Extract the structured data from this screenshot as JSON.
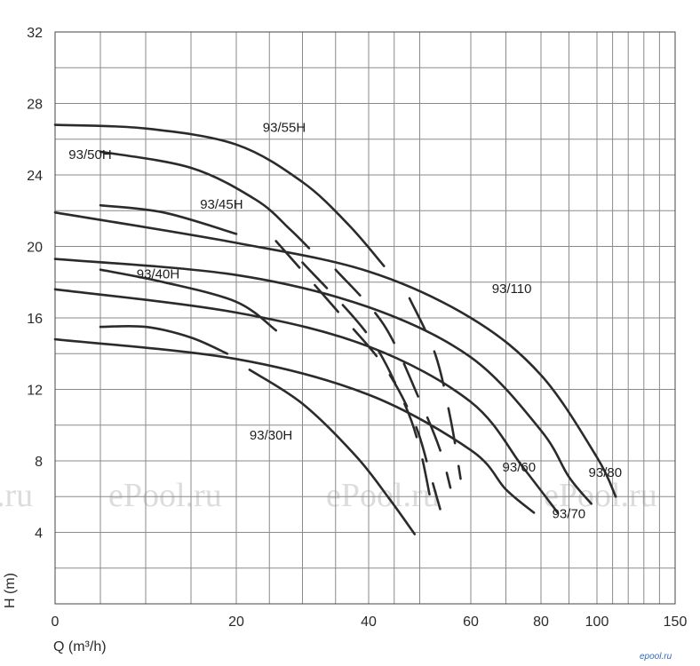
{
  "chart_data": {
    "type": "line",
    "xlabel": "Q (m³/h)",
    "ylabel": "H (m)",
    "x_scale": "log",
    "xlim": [
      0,
      150
    ],
    "ylim": [
      0,
      32
    ],
    "x_ticks": [
      {
        "value": 0,
        "label": "0"
      },
      {
        "value": 20,
        "label": "20"
      },
      {
        "value": 40,
        "label": "40"
      },
      {
        "value": 60,
        "label": "60"
      },
      {
        "value": 80,
        "label": "80"
      },
      {
        "value": 100,
        "label": "100"
      },
      {
        "value": 150,
        "label": "150"
      }
    ],
    "y_ticks": [
      {
        "value": 4,
        "label": "4"
      },
      {
        "value": 8,
        "label": "8"
      },
      {
        "value": 12,
        "label": "12"
      },
      {
        "value": 16,
        "label": "16"
      },
      {
        "value": 20,
        "label": "20"
      },
      {
        "value": 24,
        "label": "24"
      },
      {
        "value": 28,
        "label": "28"
      },
      {
        "value": 32,
        "label": "32"
      }
    ],
    "grid": true,
    "series": [
      {
        "name": "93/55H",
        "points": [
          [
            0,
            26.8
          ],
          [
            10,
            26.6
          ],
          [
            20,
            25.7
          ],
          [
            30,
            23.6
          ],
          [
            37,
            21.2
          ],
          [
            43,
            18.9
          ]
        ]
      },
      {
        "name": "93/50H",
        "points": [
          [
            5,
            25.3
          ],
          [
            15,
            24.4
          ],
          [
            23,
            22.6
          ],
          [
            28,
            21.0
          ],
          [
            31,
            19.9
          ]
        ]
      },
      {
        "name": "93/45H",
        "points": [
          [
            5,
            22.3
          ],
          [
            12,
            21.9
          ],
          [
            20,
            20.7
          ]
        ]
      },
      {
        "name": "93/40H",
        "points": [
          [
            5,
            18.7
          ],
          [
            12,
            18.0
          ],
          [
            20,
            16.9
          ],
          [
            26,
            15.3
          ]
        ]
      },
      {
        "name": "93/30H",
        "points": [
          [
            5,
            15.5
          ],
          [
            10,
            15.5
          ],
          [
            15,
            14.9
          ],
          [
            19,
            14.0
          ]
        ]
      },
      {
        "name": "93/110",
        "points": [
          [
            0,
            21.9
          ],
          [
            20,
            20.2
          ],
          [
            40,
            18.6
          ],
          [
            60,
            16.0
          ],
          [
            80,
            12.8
          ],
          [
            100,
            8.2
          ],
          [
            112,
            6.0
          ]
        ]
      },
      {
        "name": "93/80",
        "points": [
          [
            0,
            19.3
          ],
          [
            20,
            18.4
          ],
          [
            40,
            16.6
          ],
          [
            60,
            13.8
          ],
          [
            80,
            9.7
          ],
          [
            90,
            7.1
          ],
          [
            98,
            5.6
          ]
        ]
      },
      {
        "name": "93/70",
        "points": [
          [
            0,
            17.6
          ],
          [
            20,
            16.3
          ],
          [
            40,
            14.4
          ],
          [
            60,
            11.3
          ],
          [
            75,
            7.6
          ],
          [
            86,
            5.1
          ]
        ]
      },
      {
        "name": "93/60",
        "points": [
          [
            0,
            14.8
          ],
          [
            20,
            13.7
          ],
          [
            40,
            11.7
          ],
          [
            60,
            8.6
          ],
          [
            70,
            6.4
          ],
          [
            78,
            5.1
          ]
        ]
      },
      {
        "name": "",
        "points": [
          [
            22,
            13.1
          ],
          [
            30,
            11.2
          ],
          [
            38,
            8.3
          ],
          [
            44,
            5.9
          ],
          [
            49,
            3.9
          ]
        ]
      }
    ],
    "dashed_series": [
      {
        "points": [
          [
            26,
            20.3
          ],
          [
            35,
            16.5
          ],
          [
            43,
            13.3
          ],
          [
            49,
            10.1
          ],
          [
            52,
            7.3
          ],
          [
            54,
            5.3
          ]
        ]
      },
      {
        "points": [
          [
            30,
            19.1
          ],
          [
            40,
            15.0
          ],
          [
            47,
            11.2
          ],
          [
            50,
            8.7
          ],
          [
            52,
            6.0
          ]
        ]
      },
      {
        "points": [
          [
            35,
            18.7
          ],
          [
            43,
            15.6
          ],
          [
            50,
            11.4
          ],
          [
            54,
            8.6
          ],
          [
            56,
            6.5
          ]
        ]
      },
      {
        "points": [
          [
            48,
            17.1
          ],
          [
            53,
            14.0
          ],
          [
            56,
            10.4
          ],
          [
            58,
            7.0
          ]
        ]
      }
    ],
    "annotations": [
      {
        "text": "93/55H",
        "x": 24,
        "y": 26.4
      },
      {
        "text": "93/50H",
        "x": 1.5,
        "y": 24.9
      },
      {
        "text": "93/45H",
        "x": 16,
        "y": 22.1
      },
      {
        "text": "93/40H",
        "x": 9,
        "y": 18.2
      },
      {
        "text": "93/30H",
        "x": 22,
        "y": 9.2
      },
      {
        "text": "93/110",
        "x": 66,
        "y": 17.4
      },
      {
        "text": "93/80",
        "x": 97,
        "y": 7.1
      },
      {
        "text": "93/70",
        "x": 84,
        "y": 4.8
      },
      {
        "text": "93/60",
        "x": 69,
        "y": 7.4
      }
    ]
  },
  "watermark": {
    "text": "ePool.ru",
    "short": ".ru",
    "logo": "epool.ru"
  }
}
